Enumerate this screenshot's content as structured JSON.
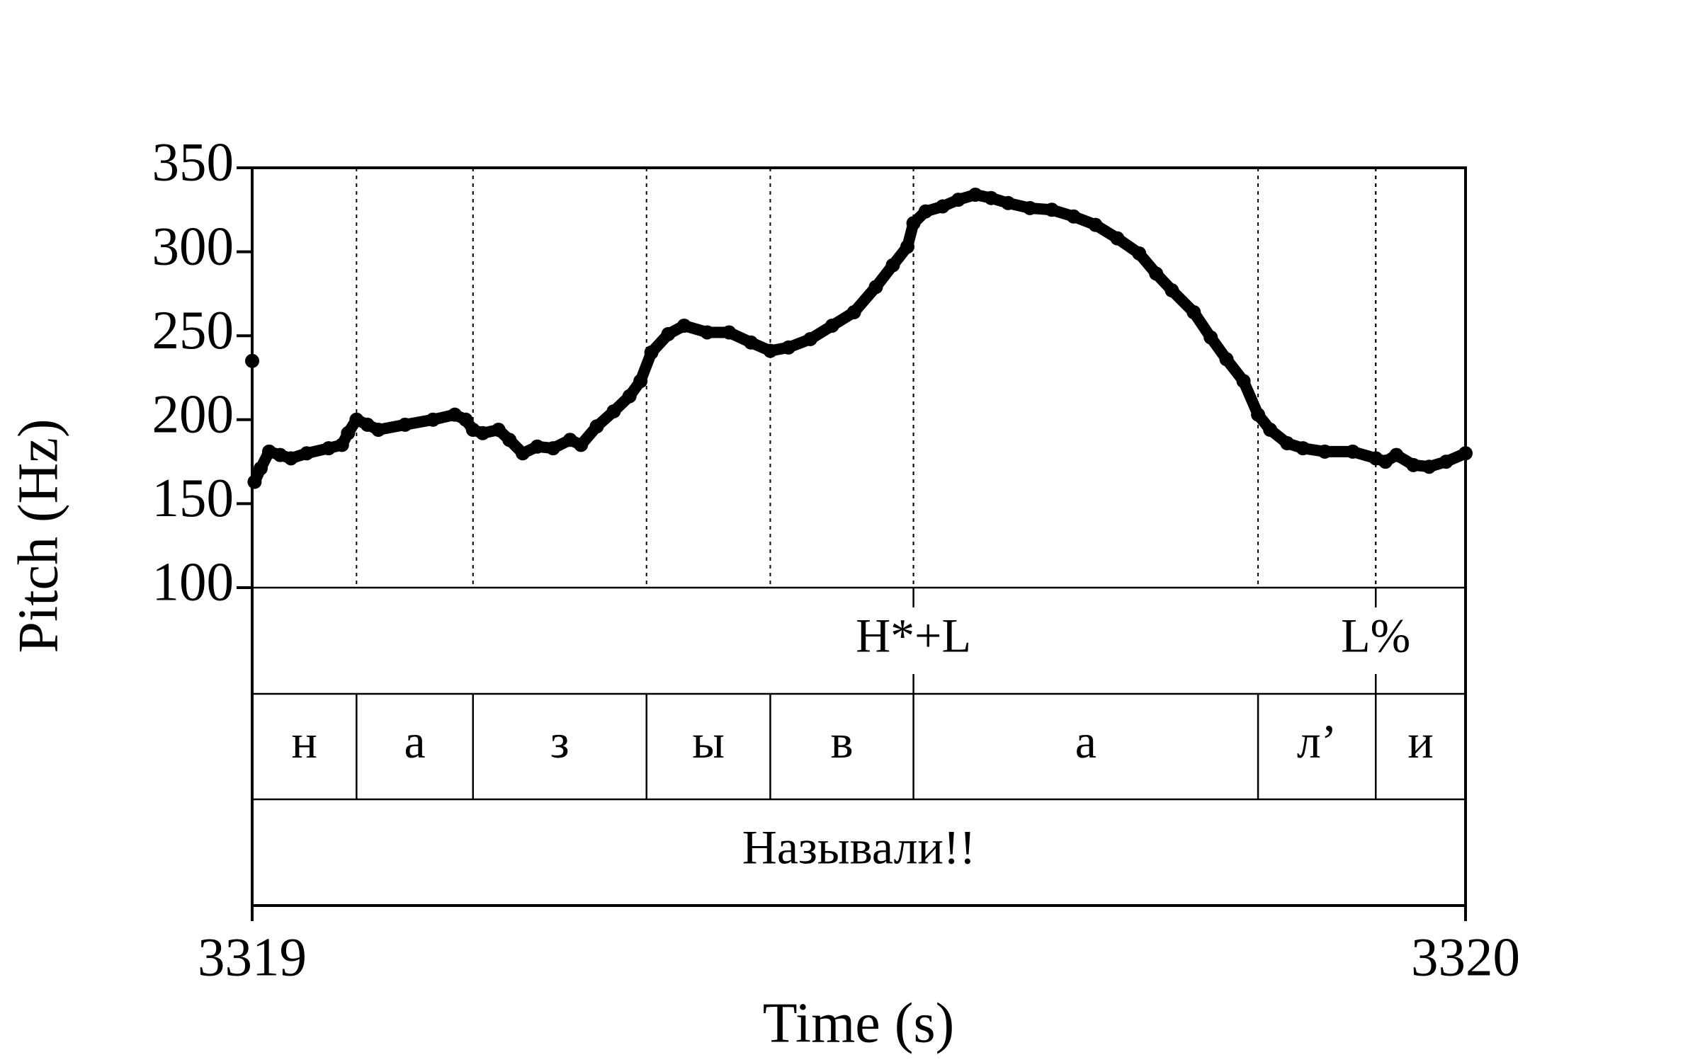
{
  "chart_data": {
    "type": "scatter",
    "x_label": "Time (s)",
    "y_label": "Pitch (Hz)",
    "xlim": [
      3319,
      3320
    ],
    "xticks": [
      3319,
      3320
    ],
    "ylim": [
      100,
      350
    ],
    "yticks": [
      100,
      150,
      200,
      250,
      300,
      350
    ],
    "color": "#000000",
    "x": [
      3319.0,
      3319.002,
      3319.007,
      3319.014,
      3319.023,
      3319.032,
      3319.045,
      3319.063,
      3319.074,
      3319.079,
      3319.086,
      3319.095,
      3319.104,
      3319.126,
      3319.149,
      3319.167,
      3319.176,
      3319.182,
      3319.19,
      3319.203,
      3319.212,
      3319.223,
      3319.235,
      3319.248,
      3319.262,
      3319.271,
      3319.284,
      3319.298,
      3319.311,
      3319.32,
      3319.329,
      3319.343,
      3319.356,
      3319.375,
      3319.393,
      3319.411,
      3319.427,
      3319.442,
      3319.46,
      3319.478,
      3319.496,
      3319.514,
      3319.528,
      3319.54,
      3319.545,
      3319.555,
      3319.569,
      3319.582,
      3319.596,
      3319.609,
      3319.623,
      3319.641,
      3319.659,
      3319.677,
      3319.695,
      3319.713,
      3319.731,
      3319.745,
      3319.758,
      3319.776,
      3319.79,
      3319.803,
      3319.817,
      3319.829,
      3319.839,
      3319.853,
      3319.866,
      3319.884,
      3319.907,
      3319.926,
      3319.934,
      3319.943,
      3319.957,
      3319.97,
      3319.984,
      3320.0
    ],
    "values": [
      235,
      163,
      171,
      181,
      179,
      177,
      180,
      183,
      185,
      192,
      200,
      197,
      194,
      197,
      200,
      203,
      200,
      194,
      192,
      194,
      188,
      180,
      184,
      183,
      188,
      185,
      196,
      205,
      214,
      223,
      240,
      251,
      256,
      252,
      252,
      246,
      241,
      243,
      248,
      256,
      264,
      279,
      292,
      303,
      317,
      324,
      327,
      331,
      334,
      332,
      329,
      326,
      325,
      321,
      316,
      308,
      299,
      287,
      277,
      264,
      249,
      236,
      223,
      203,
      194,
      186,
      183,
      181,
      181,
      177,
      175,
      179,
      173,
      172,
      175,
      180
    ],
    "point_tier": {
      "times": [
        3319.545,
        3319.926
      ],
      "labels": [
        "H*+L",
        "L%"
      ]
    },
    "interval_tier": {
      "boundaries": [
        3319.086,
        3319.182,
        3319.325,
        3319.427,
        3319.545,
        3319.829,
        3319.926
      ],
      "labels": [
        "н",
        "а",
        "з",
        "ы",
        "в",
        "а",
        "л’",
        "и"
      ]
    },
    "word_tier": {
      "labels": [
        "Называли!!"
      ]
    }
  }
}
